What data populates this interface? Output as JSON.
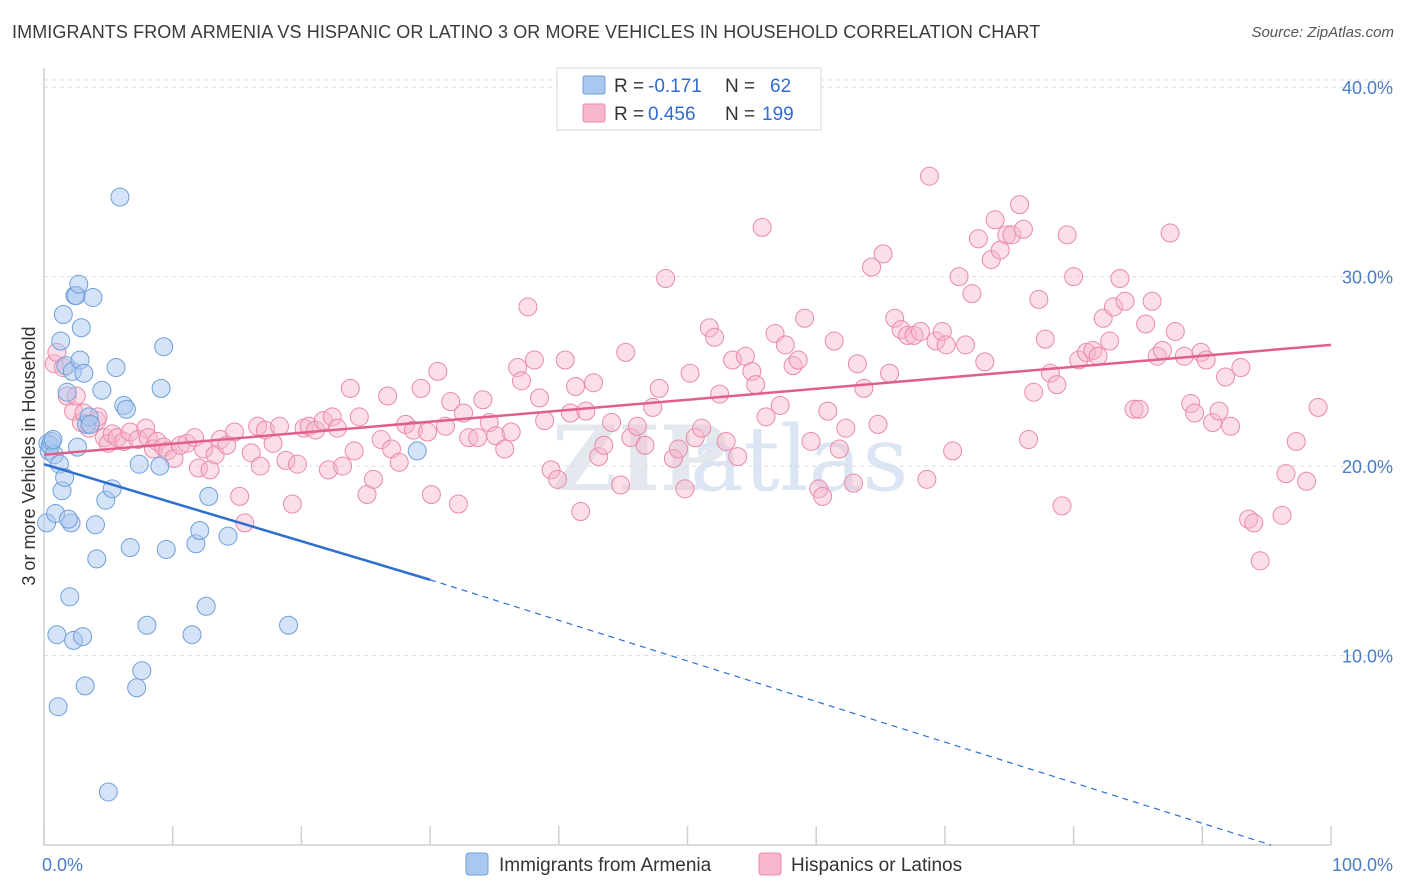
{
  "title": "IMMIGRANTS FROM ARMENIA VS HISPANIC OR LATINO 3 OR MORE VEHICLES IN HOUSEHOLD CORRELATION CHART",
  "source": "Source: ZipAtlas.com",
  "watermark": {
    "zip": "ZIP",
    "atlas": "atlas"
  },
  "colors": {
    "blue_fill": "#a9c8f0",
    "blue_stroke": "#6f9fd8",
    "blue_line": "#2e6fd0",
    "pink_fill": "#f6b6cb",
    "pink_stroke": "#e98aaa",
    "pink_line": "#e0608a",
    "grid": "#dddddd",
    "axis_text": "#4a7cc7"
  },
  "legend_top": {
    "rows": [
      {
        "r_label": "R =",
        "r_value": "-0.171",
        "n_label": "N =",
        "n_value": "62"
      },
      {
        "r_label": "R =",
        "r_value": "0.456",
        "n_label": "N =",
        "n_value": "199"
      }
    ]
  },
  "chart_data": {
    "type": "scatter",
    "title": "IMMIGRANTS FROM ARMENIA VS HISPANIC OR LATINO 3 OR MORE VEHICLES IN HOUSEHOLD CORRELATION CHART",
    "xlabel": "",
    "ylabel": "3 or more Vehicles in Household",
    "xlim": [
      0,
      100
    ],
    "ylim": [
      0,
      40.8
    ],
    "x_tick_labels": [
      "0.0%",
      "100.0%"
    ],
    "y_ticks": [
      10,
      20,
      30,
      40
    ],
    "y_tick_labels": [
      "10.0%",
      "20.0%",
      "30.0%",
      "40.0%"
    ],
    "grid": true,
    "legend_position": "bottom-center",
    "series": [
      {
        "name": "Immigrants from Armenia",
        "color": "blue",
        "R": -0.171,
        "N": 62,
        "trend": {
          "x_start": 0,
          "y_start": 20.1,
          "x_solid_end": 30,
          "y_solid_end": 14.0,
          "x_dash_end": 100,
          "y_dash_end": 0
        },
        "points": [
          [
            0.2,
            17.0
          ],
          [
            0.3,
            21.2
          ],
          [
            0.4,
            20.8
          ],
          [
            0.5,
            21.1
          ],
          [
            0.6,
            21.3
          ],
          [
            0.8,
            20.6
          ],
          [
            0.9,
            17.5
          ],
          [
            1.0,
            11.1
          ],
          [
            1.1,
            7.3
          ],
          [
            1.2,
            20.1
          ],
          [
            1.3,
            26.6
          ],
          [
            1.4,
            18.7
          ],
          [
            1.5,
            28.0
          ],
          [
            1.7,
            25.3
          ],
          [
            1.8,
            23.9
          ],
          [
            2.0,
            13.1
          ],
          [
            2.1,
            17.0
          ],
          [
            2.2,
            25.0
          ],
          [
            2.3,
            10.8
          ],
          [
            2.4,
            29.0
          ],
          [
            2.5,
            29.0
          ],
          [
            2.7,
            29.6
          ],
          [
            2.8,
            25.6
          ],
          [
            2.9,
            27.3
          ],
          [
            3.0,
            11.0
          ],
          [
            3.1,
            24.9
          ],
          [
            3.2,
            8.4
          ],
          [
            3.3,
            22.2
          ],
          [
            3.5,
            22.6
          ],
          [
            3.6,
            22.2
          ],
          [
            3.8,
            28.9
          ],
          [
            4.0,
            16.9
          ],
          [
            4.1,
            15.1
          ],
          [
            4.5,
            24.0
          ],
          [
            4.8,
            18.2
          ],
          [
            5.0,
            2.8
          ],
          [
            5.3,
            18.8
          ],
          [
            5.6,
            25.2
          ],
          [
            5.9,
            34.2
          ],
          [
            6.2,
            23.2
          ],
          [
            6.4,
            23.0
          ],
          [
            6.7,
            15.7
          ],
          [
            7.2,
            8.3
          ],
          [
            7.4,
            20.1
          ],
          [
            7.6,
            9.2
          ],
          [
            8.0,
            11.6
          ],
          [
            9.0,
            20.0
          ],
          [
            9.1,
            24.1
          ],
          [
            9.3,
            26.3
          ],
          [
            9.5,
            15.6
          ],
          [
            11.5,
            11.1
          ],
          [
            11.8,
            15.9
          ],
          [
            12.1,
            16.6
          ],
          [
            12.6,
            12.6
          ],
          [
            12.8,
            18.4
          ],
          [
            14.3,
            16.3
          ],
          [
            19.0,
            11.6
          ],
          [
            29.0,
            20.8
          ],
          [
            1.6,
            19.4
          ],
          [
            2.6,
            21.0
          ],
          [
            0.7,
            21.4
          ],
          [
            1.9,
            17.2
          ]
        ]
      },
      {
        "name": "Hispanics or Latinos",
        "color": "pink",
        "R": 0.456,
        "N": 199,
        "trend": {
          "x_start": 0,
          "y_start": 20.6,
          "x_end": 100,
          "y_end": 26.4
        },
        "points": [
          [
            0.8,
            25.4
          ],
          [
            1.0,
            26.0
          ],
          [
            1.5,
            25.2
          ],
          [
            1.8,
            23.7
          ],
          [
            2.3,
            22.9
          ],
          [
            2.5,
            23.7
          ],
          [
            2.9,
            22.3
          ],
          [
            3.1,
            22.8
          ],
          [
            3.5,
            22.0
          ],
          [
            4.1,
            22.4
          ],
          [
            4.2,
            22.6
          ],
          [
            4.7,
            21.5
          ],
          [
            5.0,
            21.2
          ],
          [
            5.3,
            21.7
          ],
          [
            5.7,
            21.5
          ],
          [
            6.2,
            21.3
          ],
          [
            6.7,
            21.8
          ],
          [
            7.3,
            21.4
          ],
          [
            7.9,
            22.0
          ],
          [
            8.1,
            21.5
          ],
          [
            8.5,
            20.9
          ],
          [
            8.8,
            21.3
          ],
          [
            9.3,
            21.0
          ],
          [
            9.6,
            20.8
          ],
          [
            10.1,
            20.4
          ],
          [
            10.6,
            21.1
          ],
          [
            11.1,
            21.2
          ],
          [
            11.7,
            21.5
          ],
          [
            12.0,
            19.9
          ],
          [
            12.4,
            20.9
          ],
          [
            12.9,
            19.8
          ],
          [
            13.3,
            20.6
          ],
          [
            13.7,
            21.4
          ],
          [
            14.2,
            21.1
          ],
          [
            14.8,
            21.8
          ],
          [
            15.2,
            18.4
          ],
          [
            15.6,
            17.0
          ],
          [
            16.1,
            20.7
          ],
          [
            16.6,
            22.1
          ],
          [
            16.8,
            20.0
          ],
          [
            17.2,
            21.9
          ],
          [
            17.8,
            21.2
          ],
          [
            18.3,
            22.1
          ],
          [
            18.8,
            20.3
          ],
          [
            19.3,
            18.0
          ],
          [
            19.7,
            20.1
          ],
          [
            20.2,
            22.0
          ],
          [
            20.6,
            22.1
          ],
          [
            21.1,
            21.9
          ],
          [
            21.7,
            22.4
          ],
          [
            22.1,
            19.8
          ],
          [
            22.4,
            22.6
          ],
          [
            22.8,
            22.0
          ],
          [
            23.2,
            20.0
          ],
          [
            23.8,
            24.1
          ],
          [
            24.1,
            20.8
          ],
          [
            24.5,
            22.6
          ],
          [
            25.1,
            18.5
          ],
          [
            25.6,
            19.3
          ],
          [
            26.2,
            21.4
          ],
          [
            26.7,
            23.7
          ],
          [
            27.0,
            20.9
          ],
          [
            27.6,
            20.2
          ],
          [
            28.1,
            22.2
          ],
          [
            28.7,
            21.9
          ],
          [
            29.3,
            24.1
          ],
          [
            29.8,
            21.8
          ],
          [
            30.1,
            18.5
          ],
          [
            30.6,
            25.0
          ],
          [
            31.2,
            22.1
          ],
          [
            31.6,
            23.4
          ],
          [
            32.2,
            18.0
          ],
          [
            32.6,
            22.8
          ],
          [
            33.0,
            21.5
          ],
          [
            33.7,
            21.5
          ],
          [
            34.1,
            23.5
          ],
          [
            34.6,
            22.3
          ],
          [
            35.1,
            21.6
          ],
          [
            35.8,
            20.9
          ],
          [
            36.3,
            21.8
          ],
          [
            36.8,
            25.2
          ],
          [
            37.1,
            24.5
          ],
          [
            37.6,
            28.4
          ],
          [
            38.1,
            25.6
          ],
          [
            38.5,
            23.6
          ],
          [
            38.9,
            22.4
          ],
          [
            39.4,
            19.8
          ],
          [
            39.9,
            19.3
          ],
          [
            40.5,
            25.6
          ],
          [
            40.9,
            22.8
          ],
          [
            41.3,
            24.2
          ],
          [
            41.7,
            17.6
          ],
          [
            42.1,
            22.9
          ],
          [
            42.7,
            24.4
          ],
          [
            43.1,
            20.5
          ],
          [
            43.5,
            21.1
          ],
          [
            44.1,
            22.3
          ],
          [
            44.8,
            19.0
          ],
          [
            45.2,
            26.0
          ],
          [
            45.6,
            21.5
          ],
          [
            46.1,
            22.1
          ],
          [
            46.7,
            21.1
          ],
          [
            47.3,
            23.1
          ],
          [
            47.8,
            24.1
          ],
          [
            48.3,
            29.9
          ],
          [
            48.9,
            20.4
          ],
          [
            49.3,
            20.9
          ],
          [
            49.8,
            18.8
          ],
          [
            50.2,
            24.9
          ],
          [
            50.6,
            21.5
          ],
          [
            51.1,
            22.0
          ],
          [
            51.7,
            27.3
          ],
          [
            52.1,
            26.8
          ],
          [
            52.5,
            23.8
          ],
          [
            53.0,
            21.3
          ],
          [
            53.5,
            25.6
          ],
          [
            53.9,
            20.5
          ],
          [
            54.5,
            25.8
          ],
          [
            55.0,
            25.0
          ],
          [
            55.3,
            24.3
          ],
          [
            55.8,
            32.6
          ],
          [
            56.1,
            22.6
          ],
          [
            56.8,
            27.0
          ],
          [
            57.2,
            23.2
          ],
          [
            57.6,
            26.4
          ],
          [
            58.2,
            25.3
          ],
          [
            58.6,
            25.6
          ],
          [
            59.1,
            27.8
          ],
          [
            59.6,
            21.3
          ],
          [
            60.2,
            18.8
          ],
          [
            60.5,
            18.4
          ],
          [
            60.9,
            22.9
          ],
          [
            61.4,
            26.6
          ],
          [
            61.8,
            20.9
          ],
          [
            62.3,
            22.0
          ],
          [
            62.9,
            19.1
          ],
          [
            63.2,
            25.4
          ],
          [
            63.7,
            24.1
          ],
          [
            64.3,
            30.5
          ],
          [
            64.8,
            22.2
          ],
          [
            65.2,
            31.2
          ],
          [
            65.7,
            24.9
          ],
          [
            66.1,
            27.8
          ],
          [
            66.6,
            27.2
          ],
          [
            67.1,
            26.9
          ],
          [
            67.6,
            26.9
          ],
          [
            68.1,
            27.1
          ],
          [
            68.6,
            19.3
          ],
          [
            68.8,
            35.3
          ],
          [
            69.3,
            26.6
          ],
          [
            69.8,
            27.1
          ],
          [
            70.1,
            26.4
          ],
          [
            70.6,
            20.8
          ],
          [
            71.1,
            30.0
          ],
          [
            71.6,
            26.4
          ],
          [
            72.1,
            29.1
          ],
          [
            72.6,
            32.0
          ],
          [
            73.1,
            25.5
          ],
          [
            73.6,
            30.9
          ],
          [
            73.9,
            33.0
          ],
          [
            74.3,
            31.4
          ],
          [
            74.8,
            32.2
          ],
          [
            75.2,
            32.2
          ],
          [
            75.8,
            33.8
          ],
          [
            76.1,
            32.5
          ],
          [
            76.5,
            21.4
          ],
          [
            76.9,
            23.9
          ],
          [
            77.3,
            28.8
          ],
          [
            77.8,
            26.7
          ],
          [
            78.2,
            24.9
          ],
          [
            78.7,
            24.3
          ],
          [
            79.1,
            17.9
          ],
          [
            79.5,
            32.2
          ],
          [
            80.0,
            30.0
          ],
          [
            80.4,
            25.6
          ],
          [
            81.0,
            26.0
          ],
          [
            81.5,
            26.1
          ],
          [
            81.9,
            25.8
          ],
          [
            82.3,
            27.8
          ],
          [
            82.8,
            26.6
          ],
          [
            83.1,
            28.4
          ],
          [
            83.6,
            29.9
          ],
          [
            84.0,
            28.7
          ],
          [
            84.7,
            23.0
          ],
          [
            85.1,
            23.0
          ],
          [
            85.6,
            27.5
          ],
          [
            86.1,
            28.7
          ],
          [
            86.5,
            25.8
          ],
          [
            86.9,
            26.1
          ],
          [
            87.5,
            32.3
          ],
          [
            87.9,
            27.1
          ],
          [
            88.6,
            25.8
          ],
          [
            89.1,
            23.3
          ],
          [
            89.4,
            22.8
          ],
          [
            89.9,
            26.0
          ],
          [
            90.3,
            25.6
          ],
          [
            90.8,
            22.3
          ],
          [
            91.3,
            22.9
          ],
          [
            91.8,
            24.7
          ],
          [
            92.2,
            22.1
          ],
          [
            93.0,
            25.2
          ],
          [
            93.6,
            17.2
          ],
          [
            94.0,
            17.0
          ],
          [
            94.5,
            15.0
          ],
          [
            96.2,
            17.4
          ],
          [
            96.5,
            19.6
          ],
          [
            97.3,
            21.3
          ],
          [
            98.1,
            19.2
          ],
          [
            99.0,
            23.1
          ]
        ]
      }
    ]
  },
  "legend_bottom": {
    "items": [
      {
        "label": "Immigrants from Armenia"
      },
      {
        "label": "Hispanics or Latinos"
      }
    ]
  }
}
